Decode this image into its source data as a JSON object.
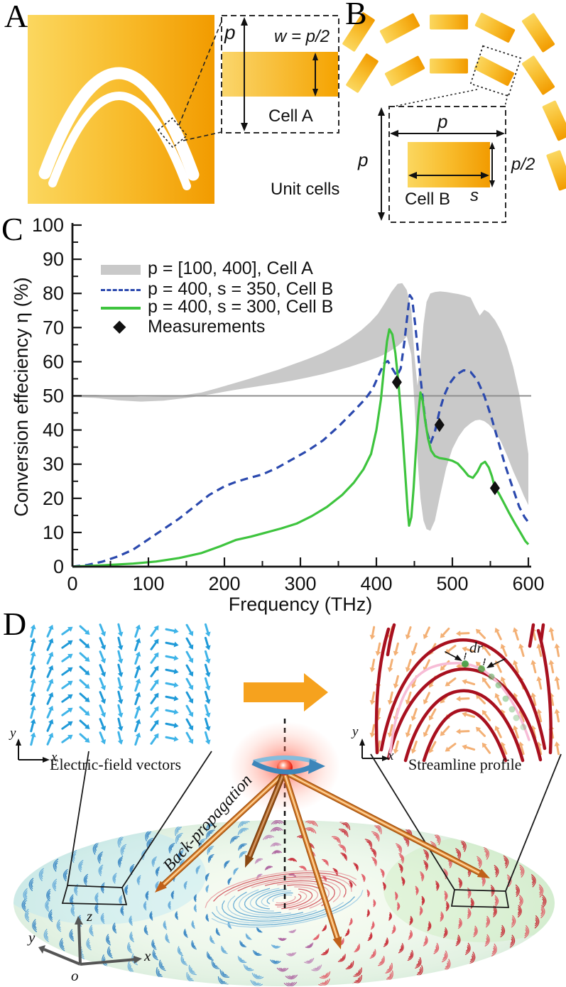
{
  "panelA": {
    "label": "A",
    "p_label": "p",
    "w_label": "w = p/2",
    "cell_label": "Cell A",
    "unit_cells_label": "Unit cells"
  },
  "panelB": {
    "label": "B",
    "p_top_label": "p",
    "p_left_label": "p",
    "p_half_label": "p/2",
    "s_label": "s",
    "cell_label": "Cell B"
  },
  "panelC": {
    "label": "C",
    "legend": [
      {
        "label": "p = [100, 400], Cell A"
      },
      {
        "label": "p = 400, s = 350, Cell B"
      },
      {
        "label": "p = 400, s = 300, Cell B"
      },
      {
        "label": "Measurements"
      }
    ],
    "xlabel": "Frequency (THz)",
    "ylabel": "Conversion effeciency η (%)"
  },
  "chart_data": {
    "type": "line",
    "title": "",
    "xlabel": "Frequency (THz)",
    "ylabel": "Conversion effeciency η (%)",
    "xlim": [
      0,
      600
    ],
    "ylim": [
      0,
      100
    ],
    "x_major_ticks": [
      0,
      100,
      200,
      300,
      400,
      500,
      600
    ],
    "y_major_ticks": [
      0,
      10,
      20,
      30,
      40,
      50,
      60,
      70,
      80,
      90,
      100
    ],
    "minor_tick_step_x": 50,
    "minor_tick_step_y": 5,
    "grid": false,
    "legend_position": "upper-left",
    "reference_line_y": 50,
    "band": {
      "name": "p = [100, 400], Cell A",
      "color": "#c9c9c9",
      "x": [
        0,
        30,
        60,
        90,
        120,
        150,
        170,
        190,
        210,
        230,
        250,
        270,
        290,
        310,
        330,
        350,
        365,
        380,
        392,
        402,
        412,
        420,
        428,
        434,
        440,
        446,
        450,
        454,
        458,
        462,
        466,
        471,
        477,
        484,
        492,
        500,
        508,
        516,
        524,
        530,
        536,
        542,
        548,
        556,
        564,
        572,
        580,
        588,
        594,
        600
      ],
      "upper": [
        50.3,
        50.3,
        50,
        49.7,
        49.8,
        50.3,
        51,
        52.2,
        53.5,
        54.8,
        56.2,
        57.6,
        59.2,
        60.8,
        62.6,
        64.8,
        66.8,
        69.2,
        71.6,
        74,
        77.5,
        80.5,
        82.8,
        83,
        81,
        75,
        62,
        53,
        60,
        71,
        77.5,
        80,
        80.4,
        80.6,
        80.4,
        80.1,
        79.8,
        79.4,
        78.8,
        76,
        73.5,
        75.2,
        74.4,
        72.2,
        69,
        64.5,
        58.5,
        50.5,
        42,
        33
      ],
      "lower": [
        49.7,
        49.4,
        48.7,
        48.3,
        48.6,
        49.4,
        50,
        50.8,
        51.6,
        52.3,
        53,
        53.7,
        54.5,
        55.4,
        56.4,
        57.6,
        58.5,
        59.6,
        60.5,
        61.3,
        62.3,
        63.4,
        64.6,
        65.8,
        67.5,
        62,
        48,
        32,
        20,
        13.5,
        11,
        10.5,
        13.5,
        21,
        29,
        34.5,
        38,
        40.5,
        42,
        42.8,
        43,
        42.6,
        41.6,
        39.6,
        36.6,
        32.5,
        28,
        24,
        20.8,
        18
      ]
    },
    "series": [
      {
        "name": "p = 400, s = 350, Cell B",
        "style": "dashed",
        "color": "#2b49ae",
        "points": [
          [
            0,
            0
          ],
          [
            20,
            0.5
          ],
          [
            40,
            1.5
          ],
          [
            60,
            3
          ],
          [
            80,
            5
          ],
          [
            100,
            8
          ],
          [
            120,
            11
          ],
          [
            140,
            14
          ],
          [
            160,
            17.5
          ],
          [
            180,
            21
          ],
          [
            200,
            23.5
          ],
          [
            215,
            24.8
          ],
          [
            230,
            25.8
          ],
          [
            250,
            27
          ],
          [
            270,
            29
          ],
          [
            290,
            31.5
          ],
          [
            310,
            34
          ],
          [
            330,
            37
          ],
          [
            350,
            41
          ],
          [
            370,
            45.5
          ],
          [
            385,
            49
          ],
          [
            395,
            52
          ],
          [
            403,
            56
          ],
          [
            410,
            59.5
          ],
          [
            415,
            60.2
          ],
          [
            421,
            58
          ],
          [
            427,
            55.8
          ],
          [
            432,
            58
          ],
          [
            437,
            66
          ],
          [
            441,
            74
          ],
          [
            444,
            79.5
          ],
          [
            447,
            78.5
          ],
          [
            451,
            71
          ],
          [
            456,
            60
          ],
          [
            461,
            49
          ],
          [
            466,
            40
          ],
          [
            471,
            36
          ],
          [
            477,
            39.5
          ],
          [
            483,
            45.5
          ],
          [
            489,
            50
          ],
          [
            496,
            53.5
          ],
          [
            505,
            56.2
          ],
          [
            515,
            57.5
          ],
          [
            524,
            57
          ],
          [
            533,
            54.5
          ],
          [
            542,
            50
          ],
          [
            551,
            44
          ],
          [
            560,
            37
          ],
          [
            569,
            30
          ],
          [
            578,
            24
          ],
          [
            588,
            17.5
          ],
          [
            595,
            14.5
          ],
          [
            600,
            13
          ]
        ]
      },
      {
        "name": "p = 400, s = 300, Cell B",
        "style": "solid",
        "color": "#3ec43e",
        "points": [
          [
            0,
            0
          ],
          [
            40,
            0.4
          ],
          [
            80,
            0.9
          ],
          [
            110,
            1.5
          ],
          [
            140,
            2.5
          ],
          [
            170,
            4
          ],
          [
            195,
            6
          ],
          [
            215,
            7.8
          ],
          [
            235,
            8.8
          ],
          [
            255,
            10
          ],
          [
            275,
            11.2
          ],
          [
            295,
            12.6
          ],
          [
            315,
            14.8
          ],
          [
            335,
            17.5
          ],
          [
            355,
            21
          ],
          [
            370,
            24.5
          ],
          [
            383,
            28.5
          ],
          [
            393,
            33
          ],
          [
            400,
            40
          ],
          [
            406,
            49
          ],
          [
            410,
            58
          ],
          [
            414,
            66
          ],
          [
            417,
            69.5
          ],
          [
            421,
            68
          ],
          [
            425,
            62.5
          ],
          [
            429,
            54
          ],
          [
            434,
            40
          ],
          [
            438,
            27
          ],
          [
            441,
            17
          ],
          [
            443,
            12
          ],
          [
            446,
            14.5
          ],
          [
            449,
            23
          ],
          [
            452,
            34
          ],
          [
            455,
            44
          ],
          [
            458,
            51
          ],
          [
            461,
            48.5
          ],
          [
            464,
            43
          ],
          [
            468,
            37.5
          ],
          [
            472,
            34
          ],
          [
            477,
            32.4
          ],
          [
            483,
            31.8
          ],
          [
            491,
            31.5
          ],
          [
            500,
            31
          ],
          [
            507,
            30.2
          ],
          [
            514,
            28.5
          ],
          [
            521,
            26.6
          ],
          [
            527,
            26
          ],
          [
            533,
            27.8
          ],
          [
            538,
            30
          ],
          [
            543,
            30.7
          ],
          [
            548,
            29
          ],
          [
            552,
            26.5
          ],
          [
            556,
            23
          ],
          [
            561,
            21.5
          ],
          [
            567,
            19
          ],
          [
            574,
            16
          ],
          [
            582,
            12.8
          ],
          [
            590,
            9.8
          ],
          [
            596,
            7.5
          ],
          [
            600,
            6.5
          ]
        ]
      }
    ],
    "measurements": {
      "name": "Measurements",
      "color": "#111111",
      "points": [
        [
          427,
          54
        ],
        [
          483,
          41.5
        ],
        [
          556,
          23
        ]
      ]
    }
  },
  "panelD": {
    "label": "D",
    "left_caption": "Electric-field vectors",
    "right_caption": "Streamline profile",
    "back_propagation_label": "Back-propagation",
    "dr_label": "dr",
    "left_axis": {
      "x": "x",
      "y": "y"
    },
    "right_axis": {
      "x": "x",
      "y": "y"
    },
    "axes3d": {
      "x": "x",
      "y": "y",
      "z": "z",
      "o": "o"
    }
  },
  "colors": {
    "accent_orange": "#F6A800",
    "band_gray": "#c9c9c9",
    "series_blue": "#2b49ae",
    "series_green": "#3ec43e",
    "streamline_red": "#a8101f",
    "vector_blue": "#1f9ad8",
    "vector_orange": "#f2a35e"
  }
}
